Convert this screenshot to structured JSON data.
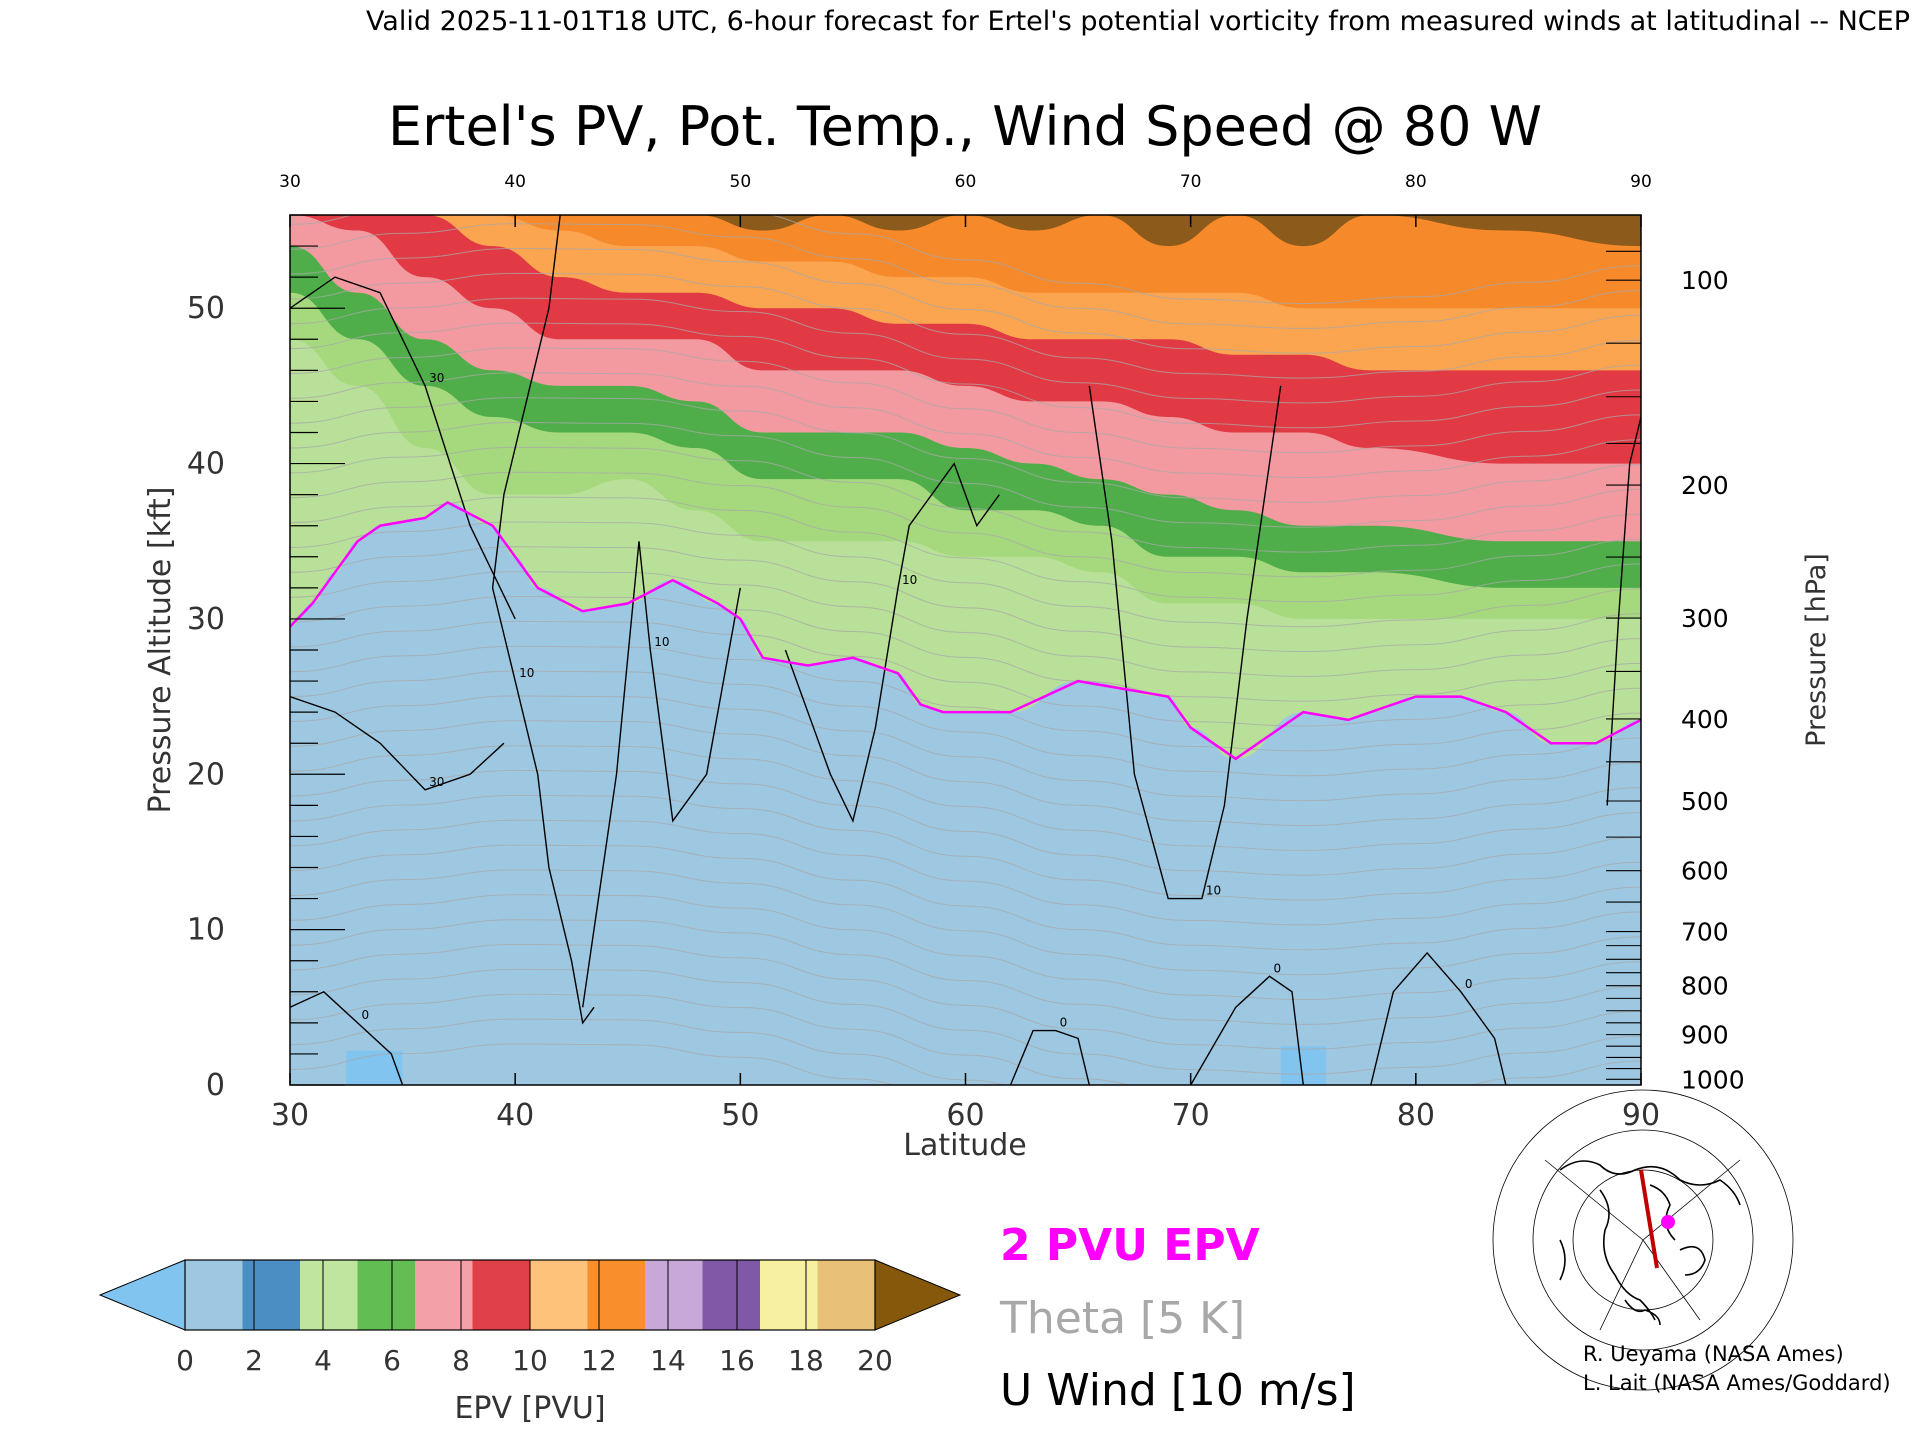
{
  "header": {
    "valid_line": "Valid 2025-11-01T18 UTC, 6-hour forecast for Ertel's potential vorticity from measured winds at latitudinal -- NCEP"
  },
  "chart_data": {
    "type": "heatmap",
    "title": "Ertel's PV, Pot. Temp., Wind Speed @ 80 W",
    "xlabel": "Latitude",
    "ylabel_left": "Pressure Altitude [kft]",
    "ylabel_right": "Pressure [hPa]",
    "xlim": [
      30,
      90
    ],
    "ylim_kft": [
      0,
      56
    ],
    "x_ticks": [
      "30",
      "40",
      "50",
      "60",
      "70",
      "80",
      "90"
    ],
    "y_ticks_kft": [
      "0",
      "10",
      "20",
      "30",
      "40",
      "50"
    ],
    "y_ticks_hpa": [
      {
        "label": "1000",
        "p": 1000
      },
      {
        "label": "900",
        "p": 900
      },
      {
        "label": "800",
        "p": 800
      },
      {
        "label": "700",
        "p": 700
      },
      {
        "label": "600",
        "p": 600
      },
      {
        "label": "500",
        "p": 500
      },
      {
        "label": "400",
        "p": 400
      },
      {
        "label": "300",
        "p": 300
      },
      {
        "label": "200",
        "p": 200
      },
      {
        "label": "100",
        "p": 100
      }
    ],
    "tropopause_2pvu_kft": {
      "lat": [
        30,
        31,
        32,
        33,
        34,
        36,
        37,
        39,
        40,
        41,
        43,
        45,
        47,
        49,
        50,
        51,
        53,
        55,
        57,
        58,
        59,
        62,
        65,
        69,
        70,
        72,
        75,
        77,
        78,
        80,
        82,
        84,
        86,
        88,
        90
      ],
      "kft": [
        29.5,
        31,
        33,
        35,
        36,
        36.5,
        37.5,
        36,
        34,
        32,
        30.5,
        31,
        32.5,
        31,
        30,
        27.5,
        27,
        27.5,
        26.5,
        24.5,
        24,
        24,
        26,
        25,
        23,
        21,
        24,
        23.5,
        24,
        25,
        25,
        24,
        22,
        22,
        23.5
      ]
    },
    "pv_bands_upper_kft": [
      {
        "pv_from": 2,
        "kft": [
          48,
          45,
          41,
          38,
          38,
          39,
          37,
          35,
          35,
          35,
          34,
          34,
          33,
          31,
          31,
          30,
          30,
          30,
          30
        ]
      },
      {
        "pv_from": 4,
        "kft": [
          51,
          48,
          45,
          43,
          42,
          42,
          41,
          39,
          39,
          39,
          37,
          37,
          36,
          34,
          34,
          33,
          33,
          32,
          32
        ]
      },
      {
        "pv_from": 6,
        "kft": [
          54,
          51,
          48,
          46,
          45,
          45,
          44,
          42,
          42,
          42,
          41,
          40,
          39,
          38,
          37,
          36,
          36,
          35,
          35
        ]
      },
      {
        "pv_from": 10,
        "kft": [
          56,
          55,
          52,
          50,
          48,
          48,
          48,
          46,
          46,
          46,
          45,
          44,
          44,
          43,
          42,
          42,
          41,
          40,
          40
        ]
      },
      {
        "pv_from": 12,
        "kft": [
          56,
          56,
          56,
          54,
          52,
          51,
          51,
          50,
          50,
          49,
          49,
          48,
          48,
          48,
          47,
          47,
          46,
          46,
          46
        ]
      },
      {
        "pv_from": 14,
        "kft": [
          56,
          56,
          56,
          56,
          55,
          54,
          54,
          53,
          53,
          52,
          52,
          51,
          51,
          51,
          51,
          50,
          50,
          50,
          50
        ]
      },
      {
        "pv_from": 20,
        "kft": [
          56,
          56,
          56,
          56,
          56,
          56,
          56,
          55,
          56,
          55,
          56,
          55,
          56,
          54,
          56,
          54,
          56,
          55,
          54
        ]
      }
    ],
    "pv_band_lats": [
      30,
      33,
      36,
      39,
      42,
      45,
      48,
      51,
      54,
      57,
      60,
      63,
      66,
      69,
      72,
      75,
      78,
      84,
      90
    ],
    "colorbar": {
      "label": "EPV [PVU]",
      "ticks": [
        "0",
        "2",
        "4",
        "6",
        "8",
        "10",
        "12",
        "14",
        "16",
        "18",
        "20"
      ],
      "colors": [
        "#9ec8e2",
        "#4a8ec4",
        "#bfe59e",
        "#62be52",
        "#f4a0a8",
        "#e04048",
        "#fec27a",
        "#f98f2c",
        "#c8a8d8",
        "#8058a8",
        "#f6f0a0",
        "#e8c078"
      ],
      "under_color": "#80c4ef",
      "over_color": "#85580c"
    },
    "legend": {
      "epv": "2 PVU EPV",
      "theta": "Theta [5 K]",
      "uwind": "U Wind [10 m/s]",
      "epv_color": "#ff00ff",
      "theta_color": "#a8a8a8",
      "uwind_color": "#000000"
    },
    "wind_contours": [
      {
        "label": "10",
        "lat": [
          42,
          41.5,
          40.5,
          39.5,
          39,
          40,
          41,
          41.5,
          42.5,
          43,
          43.5
        ],
        "kft": [
          56,
          50,
          44,
          38,
          32,
          26,
          20,
          14,
          8,
          4,
          5
        ]
      },
      {
        "label": "10",
        "lat": [
          43,
          44.5,
          45.5,
          46,
          47,
          48.5,
          50
        ],
        "kft": [
          5,
          20,
          35,
          28,
          17,
          20,
          32
        ]
      },
      {
        "label": "10",
        "lat": [
          52,
          54,
          55,
          56,
          57,
          57.5,
          59.5,
          60.5,
          61.5
        ],
        "kft": [
          28,
          20,
          17,
          23,
          32,
          36,
          40,
          36,
          38
        ]
      },
      {
        "label": "10",
        "lat": [
          65.5,
          66.5,
          67.5,
          69,
          70.5,
          71.5,
          72.5,
          74
        ],
        "kft": [
          45,
          35,
          20,
          12,
          12,
          18,
          30,
          45
        ]
      },
      {
        "label": "30",
        "lat": [
          30,
          32,
          34,
          36,
          38,
          39.5
        ],
        "kft": [
          25,
          24,
          22,
          19,
          20,
          22
        ]
      },
      {
        "label": "30",
        "lat": [
          30,
          32,
          34,
          36,
          38,
          40
        ],
        "kft": [
          50,
          52,
          51,
          45,
          36,
          30
        ]
      },
      {
        "label": "0",
        "lat": [
          30,
          31.5,
          33,
          34.5,
          35
        ],
        "kft": [
          5,
          6,
          4,
          2,
          0
        ]
      },
      {
        "label": "0",
        "lat": [
          62,
          63,
          64,
          65,
          65.5
        ],
        "kft": [
          0,
          3.5,
          3.5,
          3,
          0
        ]
      },
      {
        "label": "0",
        "lat": [
          70,
          72,
          73.5,
          74.5,
          75
        ],
        "kft": [
          0,
          5,
          7,
          6,
          0
        ]
      },
      {
        "label": "0",
        "lat": [
          78,
          79,
          80.5,
          82,
          83.5,
          84
        ],
        "kft": [
          0,
          6,
          8.5,
          6,
          3,
          0
        ]
      },
      {
        "label": "",
        "lat": [
          88.5,
          89,
          89.5,
          90
        ],
        "kft": [
          18,
          30,
          40,
          43
        ]
      }
    ]
  },
  "credits": {
    "line1": "R. Ueyama (NASA Ames)",
    "line2": "L. Lait (NASA Ames/Goddard)"
  },
  "inset_map": {
    "marker_color": "#ff00ff",
    "transect_color": "#c00000"
  }
}
